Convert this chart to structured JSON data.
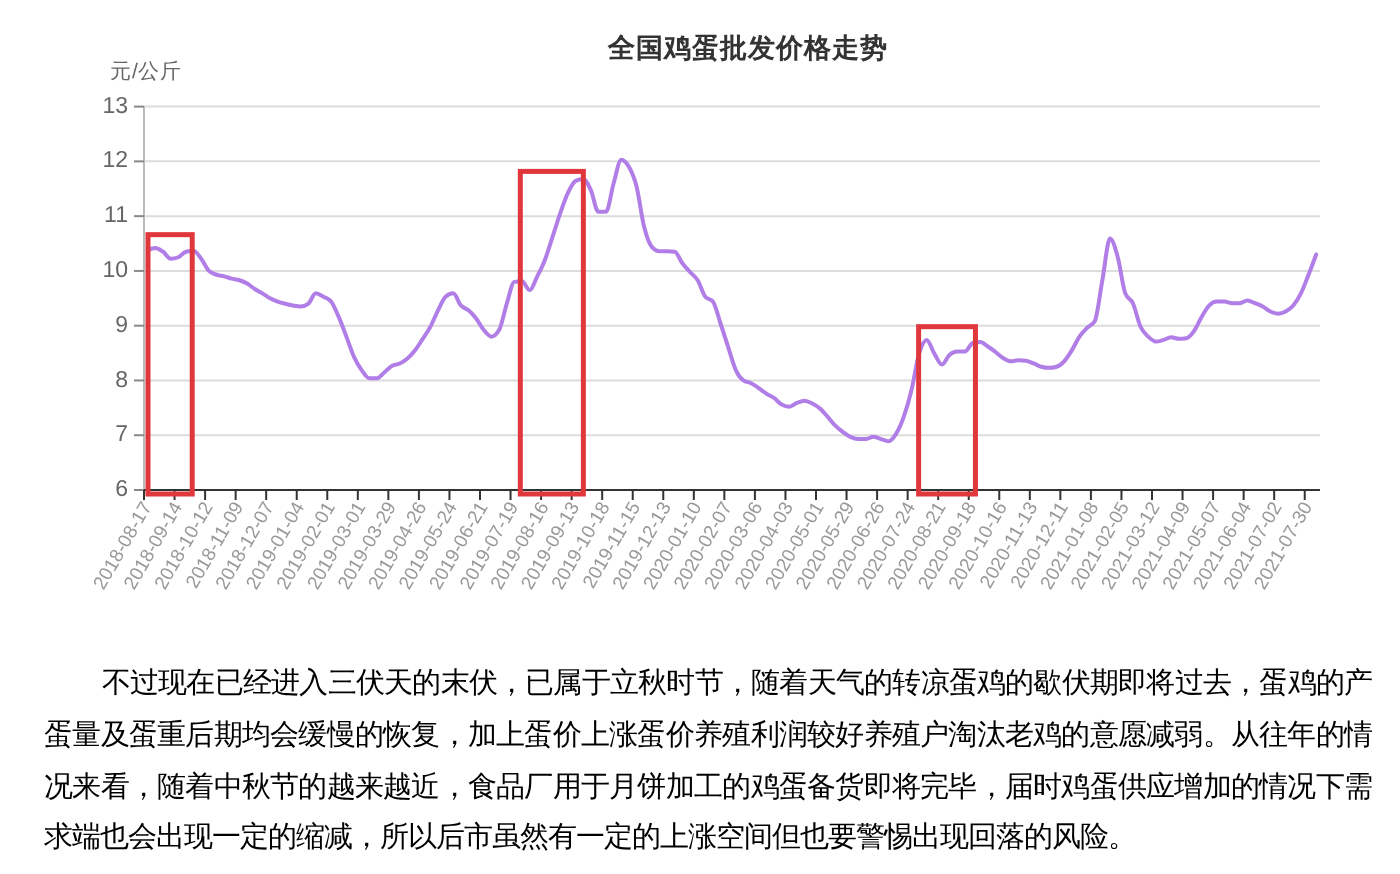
{
  "chart_data": {
    "type": "line",
    "title": "全国鸡蛋批发价格走势",
    "ylabel": "元/公斤",
    "categories": [
      "2018-08-17",
      null,
      null,
      null,
      "2018-09-14",
      null,
      null,
      null,
      "2018-10-12",
      null,
      null,
      null,
      "2018-11-09",
      null,
      null,
      null,
      "2018-12-07",
      null,
      null,
      null,
      "2019-01-04",
      null,
      null,
      null,
      "2019-02-01",
      null,
      null,
      null,
      "2019-03-01",
      null,
      null,
      null,
      "2019-03-29",
      null,
      null,
      null,
      "2019-04-26",
      null,
      null,
      null,
      "2019-05-24",
      null,
      null,
      null,
      "2019-06-21",
      null,
      null,
      null,
      "2019-07-19",
      null,
      null,
      null,
      "2019-08-16",
      null,
      null,
      null,
      "2019-09-13",
      null,
      null,
      null,
      "2019-10-18",
      null,
      null,
      null,
      "2019-11-15",
      null,
      null,
      null,
      "2019-12-13",
      null,
      null,
      null,
      "2020-01-10",
      null,
      null,
      null,
      "2020-02-07",
      null,
      null,
      null,
      "2020-03-06",
      null,
      null,
      null,
      "2020-04-03",
      null,
      null,
      null,
      "2020-05-01",
      null,
      null,
      null,
      "2020-05-29",
      null,
      null,
      null,
      "2020-06-26",
      null,
      null,
      null,
      "2020-07-24",
      null,
      null,
      null,
      "2020-08-21",
      null,
      null,
      null,
      "2020-09-18",
      null,
      null,
      null,
      "2020-10-16",
      null,
      null,
      null,
      "2020-11-13",
      null,
      null,
      null,
      "2020-12-11",
      null,
      null,
      null,
      "2021-01-08",
      null,
      null,
      null,
      "2021-02-05",
      null,
      null,
      null,
      "2021-03-12",
      null,
      null,
      null,
      "2021-04-09",
      null,
      null,
      null,
      "2021-05-07",
      null,
      null,
      null,
      "2021-06-04",
      null,
      null,
      null,
      "2021-07-02",
      null,
      null,
      null,
      "2021-07-30",
      null
    ],
    "series": [
      {
        "color": "#b07ee6",
        "values": [
          10.38,
          10.42,
          10.35,
          10.22,
          10.25,
          10.35,
          10.37,
          10.22,
          10.0,
          9.93,
          9.9,
          9.86,
          9.83,
          9.77,
          9.67,
          9.59,
          9.5,
          9.44,
          9.4,
          9.37,
          9.35,
          9.4,
          9.59,
          9.53,
          9.44,
          9.16,
          8.8,
          8.43,
          8.19,
          8.04,
          8.04,
          8.15,
          8.27,
          8.31,
          8.4,
          8.55,
          8.76,
          8.98,
          9.28,
          9.53,
          9.59,
          9.37,
          9.28,
          9.13,
          8.92,
          8.8,
          8.92,
          9.4,
          9.8,
          9.81,
          9.65,
          9.9,
          10.2,
          10.62,
          11.05,
          11.42,
          11.64,
          11.68,
          11.48,
          11.08,
          11.08,
          11.6,
          12.03,
          11.9,
          11.54,
          10.8,
          10.44,
          10.36,
          10.36,
          10.35,
          10.14,
          9.98,
          9.83,
          9.53,
          9.44,
          9.04,
          8.61,
          8.19,
          8.0,
          7.95,
          7.86,
          7.76,
          7.68,
          7.56,
          7.52,
          7.59,
          7.63,
          7.58,
          7.49,
          7.34,
          7.18,
          7.06,
          6.97,
          6.93,
          6.93,
          6.97,
          6.93,
          6.89,
          7.03,
          7.34,
          7.82,
          8.49,
          8.74,
          8.49,
          8.29,
          8.47,
          8.53,
          8.53,
          8.68,
          8.7,
          8.62,
          8.52,
          8.41,
          8.35,
          8.37,
          8.36,
          8.31,
          8.25,
          8.23,
          8.25,
          8.35,
          8.55,
          8.8,
          8.96,
          9.08,
          9.83,
          10.59,
          10.26,
          9.59,
          9.41,
          8.98,
          8.8,
          8.71,
          8.74,
          8.79,
          8.76,
          8.77,
          8.9,
          9.16,
          9.37,
          9.44,
          9.44,
          9.41,
          9.41,
          9.46,
          9.41,
          9.35,
          9.26,
          9.22,
          9.26,
          9.37,
          9.59,
          9.93,
          10.3
        ]
      }
    ],
    "ylim": [
      6,
      13
    ],
    "yticks": [
      6,
      7,
      8,
      9,
      10,
      11,
      12,
      13
    ],
    "grid": "y",
    "line_style": "solid",
    "annotations": [
      "不过现在已经进入三伏天的末伏，已属于立秋时节，随着天气的转凉蛋鸡的歇伏期即将过去，蛋鸡的产蛋量及蛋重后期均会缓慢的恢复，加上蛋价上涨蛋价养殖利润较好养殖户淘汰老鸡的意愿减弱。从往年的情况来看，随着中秋节的越来越近，食品厂用于月饼加工的鸡蛋备货即将完毕，届时鸡蛋供应增加的情况下需求端也会出现一定的缩减，所以后市虽然有一定的上涨空间但也要警惕出现回落的风险。"
    ]
  }
}
